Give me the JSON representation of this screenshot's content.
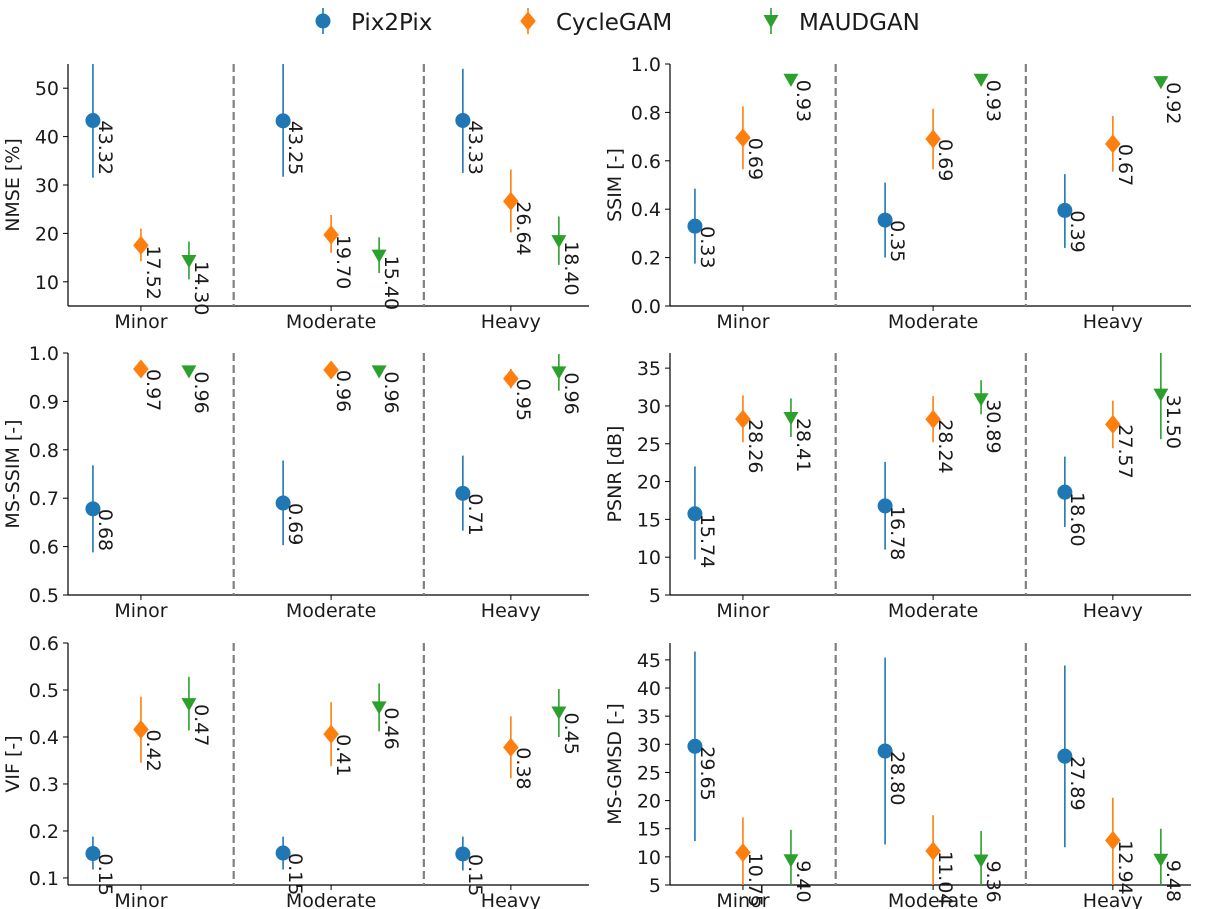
{
  "legend": {
    "placement": "top-center",
    "items": [
      {
        "label": "Pix2Pix",
        "color": "#1f77b4",
        "marker": "circle"
      },
      {
        "label": "CycleGAM",
        "color": "#ff7f0e",
        "marker": "diamond"
      },
      {
        "label": "MAUDGAN",
        "color": "#2ca02c",
        "marker": "triangle-down"
      }
    ]
  },
  "chart_data": [
    {
      "type": "scatter",
      "ylabel": "NMSE [%]",
      "categories": [
        "Minor",
        "Moderate",
        "Heavy"
      ],
      "yticks": [
        10,
        20,
        30,
        40,
        50
      ],
      "ylim": [
        5,
        55
      ],
      "series": [
        {
          "name": "Pix2Pix",
          "values": [
            43.32,
            43.25,
            43.33
          ],
          "labels": [
            "43.32",
            "43.25",
            "43.33"
          ],
          "err_low": [
            31.5,
            31.7,
            32.5
          ],
          "err_high": [
            55,
            55,
            54
          ]
        },
        {
          "name": "CycleGAM",
          "values": [
            17.52,
            19.7,
            26.64
          ],
          "labels": [
            "17.52",
            "19.70",
            "26.64"
          ],
          "err_low": [
            14.2,
            16.0,
            20.2
          ],
          "err_high": [
            21.0,
            23.8,
            33.2
          ]
        },
        {
          "name": "MAUDGAN",
          "values": [
            14.3,
            15.4,
            18.4
          ],
          "labels": [
            "14.30",
            "15.40",
            "18.40"
          ],
          "err_low": [
            10.5,
            11.8,
            13.5
          ],
          "err_high": [
            18.3,
            19.2,
            23.5
          ]
        }
      ]
    },
    {
      "type": "scatter",
      "ylabel": "SSIM [-]",
      "categories": [
        "Minor",
        "Moderate",
        "Heavy"
      ],
      "yticks": [
        0.0,
        0.2,
        0.4,
        0.6,
        0.8,
        1.0
      ],
      "ytick_labels": [
        "0.0",
        "0.2",
        "0.4",
        "0.6",
        "0.8",
        "1.0"
      ],
      "ylim": [
        0.0,
        1.0
      ],
      "series": [
        {
          "name": "Pix2Pix",
          "values": [
            0.33,
            0.355,
            0.395
          ],
          "labels": [
            "0.33",
            "0.35",
            "0.39"
          ],
          "err_low": [
            0.175,
            0.2,
            0.24
          ],
          "err_high": [
            0.485,
            0.51,
            0.545
          ]
        },
        {
          "name": "CycleGAM",
          "values": [
            0.695,
            0.69,
            0.67
          ],
          "labels": [
            "0.69",
            "0.69",
            "0.67"
          ],
          "err_low": [
            0.565,
            0.565,
            0.555
          ],
          "err_high": [
            0.825,
            0.815,
            0.785
          ]
        },
        {
          "name": "MAUDGAN",
          "values": [
            0.935,
            0.935,
            0.925
          ],
          "labels": [
            "0.93",
            "0.93",
            "0.92"
          ],
          "err_low": [
            0.92,
            0.92,
            0.905
          ],
          "err_high": [
            0.95,
            0.95,
            0.945
          ]
        }
      ]
    },
    {
      "type": "scatter",
      "ylabel": "MS-SSIM [-]",
      "categories": [
        "Minor",
        "Moderate",
        "Heavy"
      ],
      "yticks": [
        0.5,
        0.6,
        0.7,
        0.8,
        0.9,
        1.0
      ],
      "ytick_labels": [
        "0.5",
        "0.6",
        "0.7",
        "0.8",
        "0.9",
        "1.0"
      ],
      "ylim": [
        0.5,
        1.0
      ],
      "series": [
        {
          "name": "Pix2Pix",
          "values": [
            0.678,
            0.69,
            0.71
          ],
          "labels": [
            "0.68",
            "0.69",
            "0.71"
          ],
          "err_low": [
            0.588,
            0.603,
            0.633
          ],
          "err_high": [
            0.768,
            0.778,
            0.788
          ]
        },
        {
          "name": "CycleGAM",
          "values": [
            0.967,
            0.965,
            0.947
          ],
          "labels": [
            "0.97",
            "0.96",
            "0.95"
          ],
          "err_low": [
            0.952,
            0.95,
            0.927
          ],
          "err_high": [
            0.982,
            0.98,
            0.967
          ]
        },
        {
          "name": "MAUDGAN",
          "values": [
            0.962,
            0.962,
            0.96
          ],
          "labels": [
            "0.96",
            "0.96",
            "0.96"
          ],
          "err_low": [
            0.952,
            0.952,
            0.922
          ],
          "err_high": [
            0.972,
            0.972,
            0.998
          ]
        }
      ]
    },
    {
      "type": "scatter",
      "ylabel": "PSNR [dB]",
      "categories": [
        "Minor",
        "Moderate",
        "Heavy"
      ],
      "yticks": [
        5,
        10,
        15,
        20,
        25,
        30,
        35
      ],
      "ylim": [
        5,
        37
      ],
      "series": [
        {
          "name": "Pix2Pix",
          "values": [
            15.74,
            16.78,
            18.6
          ],
          "labels": [
            "15.74",
            "16.78",
            "18.60"
          ],
          "err_low": [
            9.7,
            11.0,
            14.0
          ],
          "err_high": [
            22.0,
            22.6,
            23.3
          ]
        },
        {
          "name": "CycleGAM",
          "values": [
            28.26,
            28.24,
            27.57
          ],
          "labels": [
            "28.26",
            "28.24",
            "27.57"
          ],
          "err_low": [
            25.2,
            25.2,
            24.4
          ],
          "err_high": [
            31.4,
            31.3,
            30.7
          ]
        },
        {
          "name": "MAUDGAN",
          "values": [
            28.41,
            30.89,
            31.5
          ],
          "labels": [
            "28.41",
            "30.89",
            "31.50"
          ],
          "err_low": [
            25.9,
            28.9,
            25.6
          ],
          "err_high": [
            31.0,
            33.4,
            37.0
          ]
        }
      ]
    },
    {
      "type": "scatter",
      "ylabel": "VIF [-]",
      "categories": [
        "Minor",
        "Moderate",
        "Heavy"
      ],
      "yticks": [
        0.1,
        0.2,
        0.3,
        0.4,
        0.5,
        0.6
      ],
      "ytick_labels": [
        "0.1",
        "0.2",
        "0.3",
        "0.4",
        "0.5",
        "0.6"
      ],
      "ylim": [
        0.085,
        0.6
      ],
      "series": [
        {
          "name": "Pix2Pix",
          "values": [
            0.152,
            0.153,
            0.151
          ],
          "labels": [
            "0.15",
            "0.15",
            "0.15"
          ],
          "err_low": [
            0.118,
            0.118,
            0.116
          ],
          "err_high": [
            0.188,
            0.188,
            0.188
          ]
        },
        {
          "name": "CycleGAM",
          "values": [
            0.416,
            0.406,
            0.378
          ],
          "labels": [
            "0.42",
            "0.41",
            "0.38"
          ],
          "err_low": [
            0.345,
            0.338,
            0.312
          ],
          "err_high": [
            0.486,
            0.474,
            0.444
          ]
        },
        {
          "name": "MAUDGAN",
          "values": [
            0.47,
            0.463,
            0.452
          ],
          "labels": [
            "0.47",
            "0.46",
            "0.45"
          ],
          "err_low": [
            0.414,
            0.412,
            0.4
          ],
          "err_high": [
            0.528,
            0.514,
            0.502
          ]
        }
      ]
    },
    {
      "type": "scatter",
      "ylabel": "MS-GMSD [-]",
      "categories": [
        "Minor",
        "Moderate",
        "Heavy"
      ],
      "yticks": [
        5,
        10,
        15,
        20,
        25,
        30,
        35,
        40,
        45
      ],
      "ylim": [
        5,
        48
      ],
      "series": [
        {
          "name": "Pix2Pix",
          "values": [
            29.65,
            28.8,
            27.89
          ],
          "labels": [
            "29.65",
            "28.80",
            "27.89"
          ],
          "err_low": [
            12.8,
            12.2,
            11.7
          ],
          "err_high": [
            46.5,
            45.4,
            44.0
          ]
        },
        {
          "name": "CycleGAM",
          "values": [
            10.75,
            11.04,
            12.94
          ],
          "labels": [
            "10.75",
            "11.04",
            "12.94"
          ],
          "err_low": [
            5.0,
            5.0,
            5.0
          ],
          "err_high": [
            17.0,
            17.4,
            20.5
          ]
        },
        {
          "name": "MAUDGAN",
          "values": [
            9.4,
            9.36,
            9.48
          ],
          "labels": [
            "9.40",
            "9.36",
            "9.48"
          ],
          "err_low": [
            5.0,
            5.0,
            5.0
          ],
          "err_high": [
            14.8,
            14.6,
            15.0
          ]
        }
      ]
    }
  ]
}
